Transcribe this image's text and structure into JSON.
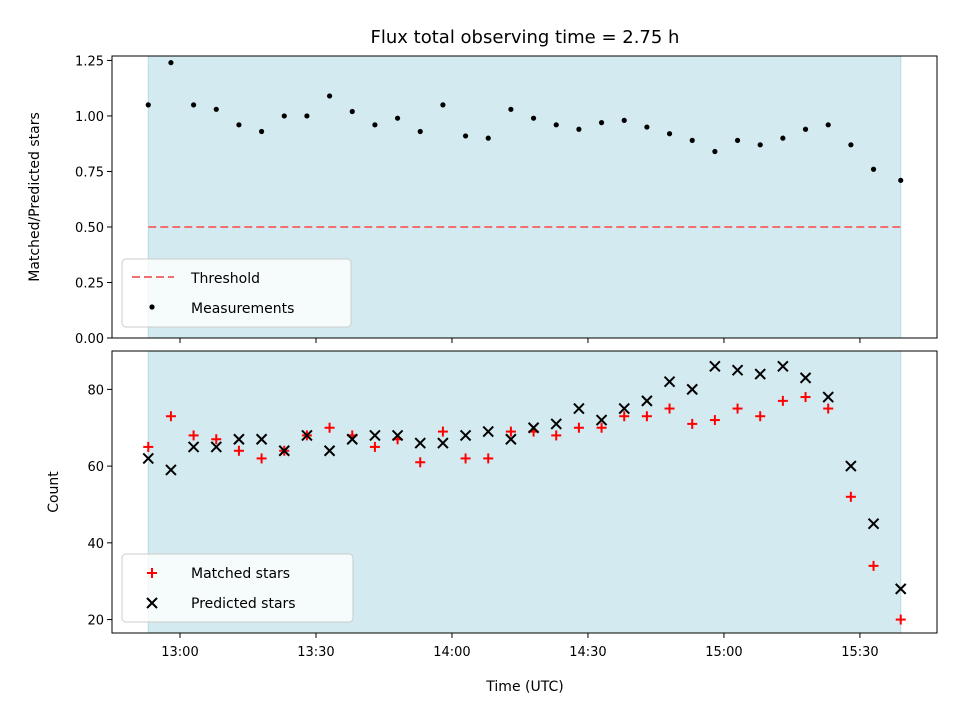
{
  "figure": {
    "title": "Flux total observing time = 2.75 h",
    "xlabel": "Time (UTC)",
    "x_tick_labels": [
      "13:00",
      "13:30",
      "14:00",
      "14:30",
      "15:00",
      "15:30"
    ]
  },
  "colors": {
    "span": "#d3eaf0",
    "span_edge": "#b8dce6",
    "threshold": "#f07070",
    "measurements": "#000000",
    "matched": "#ff0000",
    "predicted": "#000000"
  },
  "chart_data": [
    {
      "type": "scatter",
      "panel": "top",
      "ylabel": "Matched/Predicted stars",
      "xlim": [
        "12:45",
        "15:47"
      ],
      "ylim": [
        0,
        1.27
      ],
      "y_ticks": [
        "0.00",
        "0.25",
        "0.50",
        "0.75",
        "1.00",
        "1.25"
      ],
      "shaded_span": [
        "12:53",
        "15:39"
      ],
      "threshold": {
        "name": "Threshold",
        "value": 0.5,
        "style": "dashed"
      },
      "legend_position": "lower-left",
      "series": [
        {
          "name": "Measurements",
          "marker": "dot",
          "x": [
            "12:53",
            "12:58",
            "13:03",
            "13:08",
            "13:13",
            "13:18",
            "13:23",
            "13:28",
            "13:33",
            "13:38",
            "13:43",
            "13:48",
            "13:53",
            "13:58",
            "14:03",
            "14:08",
            "14:13",
            "14:18",
            "14:23",
            "14:28",
            "14:33",
            "14:38",
            "14:43",
            "14:48",
            "14:53",
            "14:58",
            "15:03",
            "15:08",
            "15:13",
            "15:18",
            "15:23",
            "15:28",
            "15:33",
            "15:39"
          ],
          "y": [
            1.05,
            1.24,
            1.05,
            1.03,
            0.96,
            0.93,
            1.0,
            1.0,
            1.09,
            1.02,
            0.96,
            0.99,
            0.93,
            1.05,
            0.91,
            0.9,
            1.03,
            0.99,
            0.96,
            0.94,
            0.97,
            0.98,
            0.95,
            0.92,
            0.89,
            0.84,
            0.89,
            0.87,
            0.9,
            0.94,
            0.96,
            0.87,
            0.76,
            0.71
          ]
        }
      ]
    },
    {
      "type": "scatter",
      "panel": "bottom",
      "ylabel": "Count",
      "xlim": [
        "12:45",
        "15:47"
      ],
      "ylim": [
        16.5,
        90
      ],
      "y_ticks": [
        "20",
        "40",
        "60",
        "80"
      ],
      "shaded_span": [
        "12:53",
        "15:39"
      ],
      "legend_position": "lower-left",
      "x": [
        "12:53",
        "12:58",
        "13:03",
        "13:08",
        "13:13",
        "13:18",
        "13:23",
        "13:28",
        "13:33",
        "13:38",
        "13:43",
        "13:48",
        "13:53",
        "13:58",
        "14:03",
        "14:08",
        "14:13",
        "14:18",
        "14:23",
        "14:28",
        "14:33",
        "14:38",
        "14:43",
        "14:48",
        "14:53",
        "14:58",
        "15:03",
        "15:08",
        "15:13",
        "15:18",
        "15:23",
        "15:28",
        "15:33",
        "15:39"
      ],
      "series": [
        {
          "name": "Matched stars",
          "marker": "plus",
          "values": [
            65,
            73,
            68,
            67,
            64,
            62,
            64,
            68,
            70,
            68,
            65,
            67,
            61,
            69,
            62,
            62,
            69,
            69,
            68,
            70,
            70,
            73,
            73,
            75,
            71,
            72,
            75,
            73,
            77,
            78,
            75,
            52,
            34,
            20
          ]
        },
        {
          "name": "Predicted stars",
          "marker": "x",
          "values": [
            62,
            59,
            65,
            65,
            67,
            67,
            64,
            68,
            64,
            67,
            68,
            68,
            66,
            66,
            68,
            69,
            67,
            70,
            71,
            75,
            72,
            75,
            77,
            82,
            80,
            86,
            85,
            84,
            86,
            83,
            78,
            60,
            45,
            28
          ]
        }
      ]
    }
  ]
}
